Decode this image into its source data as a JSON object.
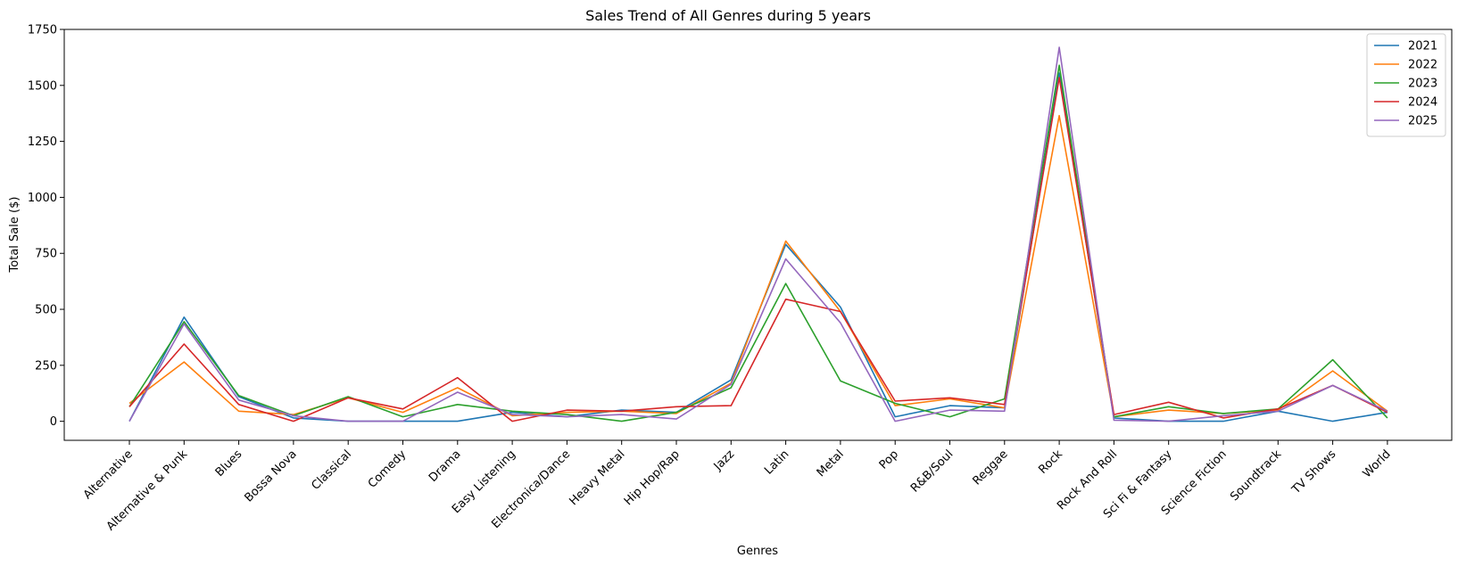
{
  "chart_data": {
    "type": "line",
    "title": "Sales Trend of All Genres during 5 years",
    "xlabel": "Genres",
    "ylabel": "Total Sale ($)",
    "ylim": [
      -85,
      1750
    ],
    "yticks": [
      0,
      250,
      500,
      750,
      1000,
      1250,
      1500,
      1750
    ],
    "grid": false,
    "legend_position": "top-right",
    "categories": [
      "Alternative",
      "Alternative & Punk",
      "Blues",
      "Bossa Nova",
      "Classical",
      "Comedy",
      "Drama",
      "Easy Listening",
      "Electronica/Dance",
      "Heavy Metal",
      "Hip Hop/Rap",
      "Jazz",
      "Latin",
      "Metal",
      "Pop",
      "R&B/Soul",
      "Reggae",
      "Rock",
      "Rock And Roll",
      "Sci Fi & Fantasy",
      "Science Fiction",
      "Soundtrack",
      "TV Shows",
      "World"
    ],
    "series": [
      {
        "name": "2021",
        "color": "#1f77b4",
        "values": [
          0,
          465,
          110,
          15,
          0,
          0,
          0,
          40,
          20,
          50,
          40,
          185,
          790,
          510,
          20,
          70,
          60,
          1555,
          15,
          0,
          0,
          45,
          0,
          40
        ]
      },
      {
        "name": "2022",
        "color": "#ff7f0e",
        "values": [
          80,
          265,
          45,
          30,
          105,
          40,
          150,
          25,
          40,
          45,
          35,
          170,
          805,
          490,
          70,
          100,
          60,
          1365,
          20,
          50,
          35,
          50,
          225,
          45
        ]
      },
      {
        "name": "2023",
        "color": "#2ca02c",
        "values": [
          65,
          445,
          115,
          25,
          110,
          20,
          75,
          45,
          30,
          0,
          40,
          150,
          615,
          180,
          80,
          20,
          100,
          1590,
          20,
          65,
          35,
          55,
          275,
          15
        ]
      },
      {
        "name": "2024",
        "color": "#d62728",
        "values": [
          65,
          345,
          75,
          0,
          105,
          55,
          195,
          0,
          50,
          45,
          65,
          70,
          545,
          490,
          90,
          105,
          75,
          1535,
          30,
          85,
          15,
          55,
          160,
          40
        ]
      },
      {
        "name": "2025",
        "color": "#9467bd",
        "values": [
          0,
          435,
          95,
          25,
          0,
          0,
          130,
          30,
          20,
          30,
          10,
          165,
          725,
          440,
          0,
          50,
          45,
          1670,
          5,
          0,
          25,
          45,
          160,
          45
        ]
      }
    ]
  }
}
